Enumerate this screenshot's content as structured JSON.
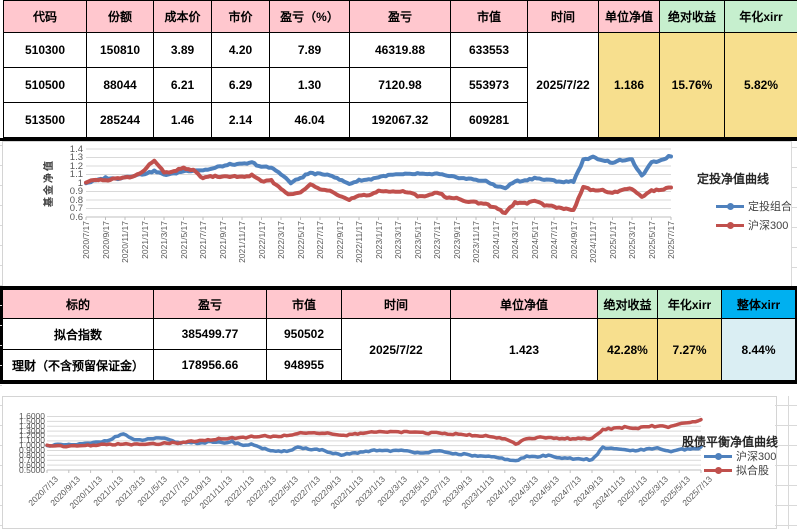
{
  "colors": {
    "header_pink": "#FFC7CE",
    "header_pink_text": "#9C0006",
    "header_green": "#C6EFCE",
    "header_green_text": "#0B7B34",
    "header_blue": "#00B0F0",
    "value_yellow": "#F7DF8E",
    "value_yellow_text": "#9C6500",
    "value_lightblue": "#DAEEF3",
    "time_navy": "#17375E",
    "series_blue": "#4F81BD",
    "series_red": "#C0504D"
  },
  "table1": {
    "headers": [
      "代码",
      "份额",
      "成本价",
      "市价",
      "盈亏（%）",
      "盈亏",
      "市值",
      "时间",
      "单位净值",
      "绝对收益",
      "年化xirr"
    ],
    "rows": [
      [
        "510300",
        "150810",
        "3.89",
        "4.20",
        "7.89",
        "46319.88",
        "633553"
      ],
      [
        "510500",
        "88044",
        "6.21",
        "6.29",
        "1.30",
        "7120.98",
        "553973"
      ],
      [
        "513500",
        "285244",
        "1.46",
        "2.14",
        "46.04",
        "192067.32",
        "609281"
      ]
    ],
    "time_value": "2025/7/22",
    "unit_nav": "1.186",
    "abs_return": "15.76%",
    "xirr": "5.82%"
  },
  "table2": {
    "headers": [
      "标的",
      "盈亏",
      "市值",
      "时间",
      "单位净值",
      "绝对收益",
      "年化xirr",
      "整体xirr"
    ],
    "rows": [
      [
        "拟合指数",
        "385499.77",
        "950502"
      ],
      [
        "理财（不含预留保证金）",
        "178956.66",
        "948955"
      ]
    ],
    "time_value": "2025/7/22",
    "unit_nav": "1.423",
    "abs_return": "42.28%",
    "xirr": "7.27%",
    "overall_xirr": "8.44%"
  },
  "chart_data": [
    {
      "type": "line",
      "title": "定投净值曲线",
      "ylabel": "基金净值",
      "ylim": [
        0.6,
        1.4
      ],
      "y_ticks": [
        "1.4",
        "1.3",
        "1.2",
        "1.1",
        "1",
        "0.9",
        "0.8",
        "0.7",
        "0.6"
      ],
      "grid": true,
      "legend_position": "right",
      "x_labels": [
        "2020/7/17",
        "2020/9/17",
        "2020/11/17",
        "2021/1/17",
        "2021/3/17",
        "2021/5/17",
        "2021/7/17",
        "2021/9/17",
        "2021/11/17",
        "2022/1/17",
        "2022/3/17",
        "2022/5/17",
        "2022/7/17",
        "2022/9/17",
        "2022/11/17",
        "2023/1/17",
        "2023/3/17",
        "2023/5/17",
        "2023/7/17",
        "2023/9/17",
        "2023/11/17",
        "2024/1/17",
        "2024/3/17",
        "2024/5/17",
        "2024/7/17",
        "2024/9/17",
        "2024/11/17",
        "2025/1/17",
        "2025/3/17",
        "2025/5/17",
        "2025/7/17"
      ],
      "series": [
        {
          "name": "定投组合",
          "color": "#4F81BD",
          "values": [
            1.0,
            1.03,
            1.06,
            1.05,
            1.07,
            1.09,
            1.11,
            1.14,
            1.1,
            1.11,
            1.14,
            1.15,
            1.15,
            1.17,
            1.2,
            1.22,
            1.22,
            1.24,
            1.19,
            1.18,
            1.11,
            1.0,
            1.06,
            1.12,
            1.1,
            1.1,
            1.04,
            0.99,
            1.03,
            1.04,
            1.07,
            1.09,
            1.1,
            1.1,
            1.11,
            1.1,
            1.11,
            1.08,
            1.07,
            1.05,
            1.04,
            1.02,
            0.97,
            0.94,
            1.02,
            1.03,
            1.06,
            1.04,
            1.03,
            1.01,
            1.02,
            1.27,
            1.3,
            1.27,
            1.24,
            1.27,
            1.27,
            1.08,
            1.24,
            1.27,
            1.32
          ]
        },
        {
          "name": "沪深300",
          "color": "#C0504D",
          "values": [
            1.0,
            1.04,
            1.03,
            1.05,
            1.06,
            1.08,
            1.15,
            1.27,
            1.12,
            1.13,
            1.18,
            1.15,
            1.06,
            1.08,
            1.07,
            1.08,
            1.07,
            1.09,
            1.02,
            1.03,
            0.93,
            0.86,
            0.89,
            0.98,
            0.93,
            0.92,
            0.85,
            0.8,
            0.85,
            0.85,
            0.91,
            0.9,
            0.9,
            0.89,
            0.85,
            0.85,
            0.89,
            0.83,
            0.82,
            0.79,
            0.77,
            0.75,
            0.71,
            0.65,
            0.77,
            0.76,
            0.79,
            0.74,
            0.72,
            0.7,
            0.68,
            0.95,
            0.92,
            0.91,
            0.88,
            0.92,
            0.93,
            0.84,
            0.91,
            0.92,
            0.95
          ]
        }
      ]
    },
    {
      "type": "line",
      "title": "股债平衡净值曲线",
      "ylabel": "",
      "ylim": [
        0.5,
        1.6
      ],
      "y_ticks": [
        "1.6000",
        "1.5000",
        "1.4000",
        "1.3000",
        "1.2000",
        "1.1000",
        "1.0000",
        "0.9000",
        "0.8000",
        "0.7000",
        "0.6000",
        "0.5000"
      ],
      "grid": true,
      "legend_position": "right",
      "x_labels": [
        "2020/7/13",
        "2020/9/13",
        "2020/11/13",
        "2021/1/13",
        "2021/3/13",
        "2021/5/13",
        "2021/7/13",
        "2021/9/13",
        "2021/11/13",
        "2022/1/13",
        "2022/3/13",
        "2022/5/13",
        "2022/7/13",
        "2022/9/13",
        "2022/11/13",
        "2023/1/13",
        "2023/3/13",
        "2023/5/13",
        "2023/7/13",
        "2023/9/13",
        "2023/11/13",
        "2024/1/13",
        "2024/3/13",
        "2024/5/13",
        "2024/7/13",
        "2024/9/13",
        "2024/11/13",
        "2025/1/13",
        "2025/3/13",
        "2025/5/13",
        "2025/7/13"
      ],
      "series": [
        {
          "name": "沪深300",
          "color": "#4F81BD",
          "values": [
            1.0,
            1.02,
            1.01,
            1.03,
            1.05,
            1.08,
            1.15,
            1.25,
            1.11,
            1.12,
            1.16,
            1.13,
            1.06,
            1.07,
            1.06,
            1.07,
            1.06,
            1.08,
            1.01,
            1.02,
            0.93,
            0.87,
            0.89,
            0.97,
            0.93,
            0.92,
            0.85,
            0.8,
            0.85,
            0.86,
            0.91,
            0.9,
            0.9,
            0.89,
            0.86,
            0.86,
            0.89,
            0.84,
            0.83,
            0.8,
            0.78,
            0.76,
            0.73,
            0.68,
            0.78,
            0.77,
            0.8,
            0.76,
            0.74,
            0.72,
            0.71,
            0.96,
            0.93,
            0.92,
            0.89,
            0.93,
            0.94,
            0.88,
            0.92,
            0.93,
            0.96
          ]
        },
        {
          "name": "拟合股",
          "color": "#C0504D",
          "values": [
            1.0,
            1.0,
            0.99,
            1.0,
            1.01,
            1.02,
            1.02,
            1.04,
            1.02,
            1.03,
            1.04,
            1.05,
            1.06,
            1.08,
            1.1,
            1.12,
            1.14,
            1.16,
            1.17,
            1.19,
            1.2,
            1.18,
            1.21,
            1.25,
            1.27,
            1.26,
            1.24,
            1.2,
            1.24,
            1.25,
            1.28,
            1.29,
            1.28,
            1.29,
            1.27,
            1.26,
            1.27,
            1.24,
            1.23,
            1.21,
            1.2,
            1.18,
            1.15,
            1.03,
            1.15,
            1.16,
            1.17,
            1.15,
            1.14,
            1.15,
            1.14,
            1.33,
            1.36,
            1.38,
            1.35,
            1.39,
            1.41,
            1.38,
            1.44,
            1.48,
            1.53
          ]
        }
      ]
    }
  ]
}
